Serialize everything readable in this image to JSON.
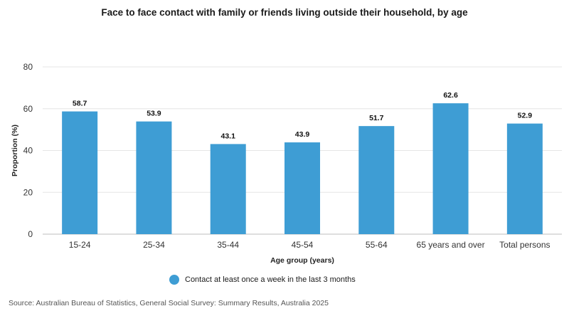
{
  "chart_data": {
    "type": "bar",
    "title": "Face to face contact with family or friends living outside their household, by age",
    "xlabel": "Age group (years)",
    "ylabel": "Proportion (%)",
    "categories": [
      "15-24",
      "25-34",
      "35-44",
      "45-54",
      "55-64",
      "65 years and over",
      "Total persons"
    ],
    "series": [
      {
        "name": "Contact at least once a week in the last 3 months",
        "values": [
          58.7,
          53.9,
          43.1,
          43.9,
          51.7,
          62.6,
          52.9
        ]
      }
    ],
    "ylim": [
      0,
      80
    ],
    "yticks": [
      0,
      20,
      40,
      60,
      80
    ],
    "grid": true,
    "legend_position": "bottom",
    "bar_color": "#3e9dd4"
  },
  "source": "Source: Australian Bureau of Statistics, General Social Survey: Summary Results, Australia 2025"
}
